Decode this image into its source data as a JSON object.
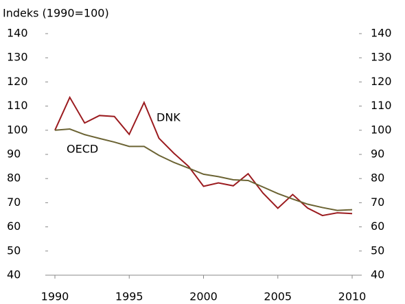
{
  "chart_data": {
    "type": "line",
    "y_label": "Indeks (1990=100)",
    "x": [
      1990,
      1991,
      1992,
      1993,
      1994,
      1995,
      1996,
      1997,
      1998,
      1999,
      2000,
      2001,
      2002,
      2003,
      2004,
      2005,
      2006,
      2007,
      2008,
      2009,
      2010
    ],
    "series": [
      {
        "name": "DNK",
        "color": "#9b1b1f",
        "values": [
          100,
          113.6,
          103,
          106.1,
          105.7,
          98.3,
          111.5,
          96.7,
          90.5,
          85,
          76.8,
          78.2,
          77,
          82,
          74,
          67.7,
          73.4,
          67.8,
          64.7,
          65.8,
          65.5
        ]
      },
      {
        "name": "OECD",
        "color": "#6b6333",
        "values": [
          100,
          100.5,
          98.2,
          96.6,
          95.1,
          93.3,
          93.3,
          89.6,
          86.7,
          84.3,
          81.8,
          80.8,
          79.5,
          79.2,
          76.5,
          73.8,
          71.5,
          69.4,
          68,
          66.8,
          67.1
        ]
      }
    ],
    "xlim": [
      1990,
      2010
    ],
    "xticks": [
      1990,
      1995,
      2000,
      2005,
      2010
    ],
    "ylim": [
      40,
      140
    ],
    "yticks": [
      40,
      50,
      60,
      70,
      80,
      90,
      100,
      110,
      120,
      130,
      140
    ],
    "y2lim": [
      40,
      140
    ],
    "y2ticks": [
      40,
      50,
      60,
      70,
      80,
      90,
      100,
      110,
      120,
      130,
      140
    ],
    "grid": false
  }
}
